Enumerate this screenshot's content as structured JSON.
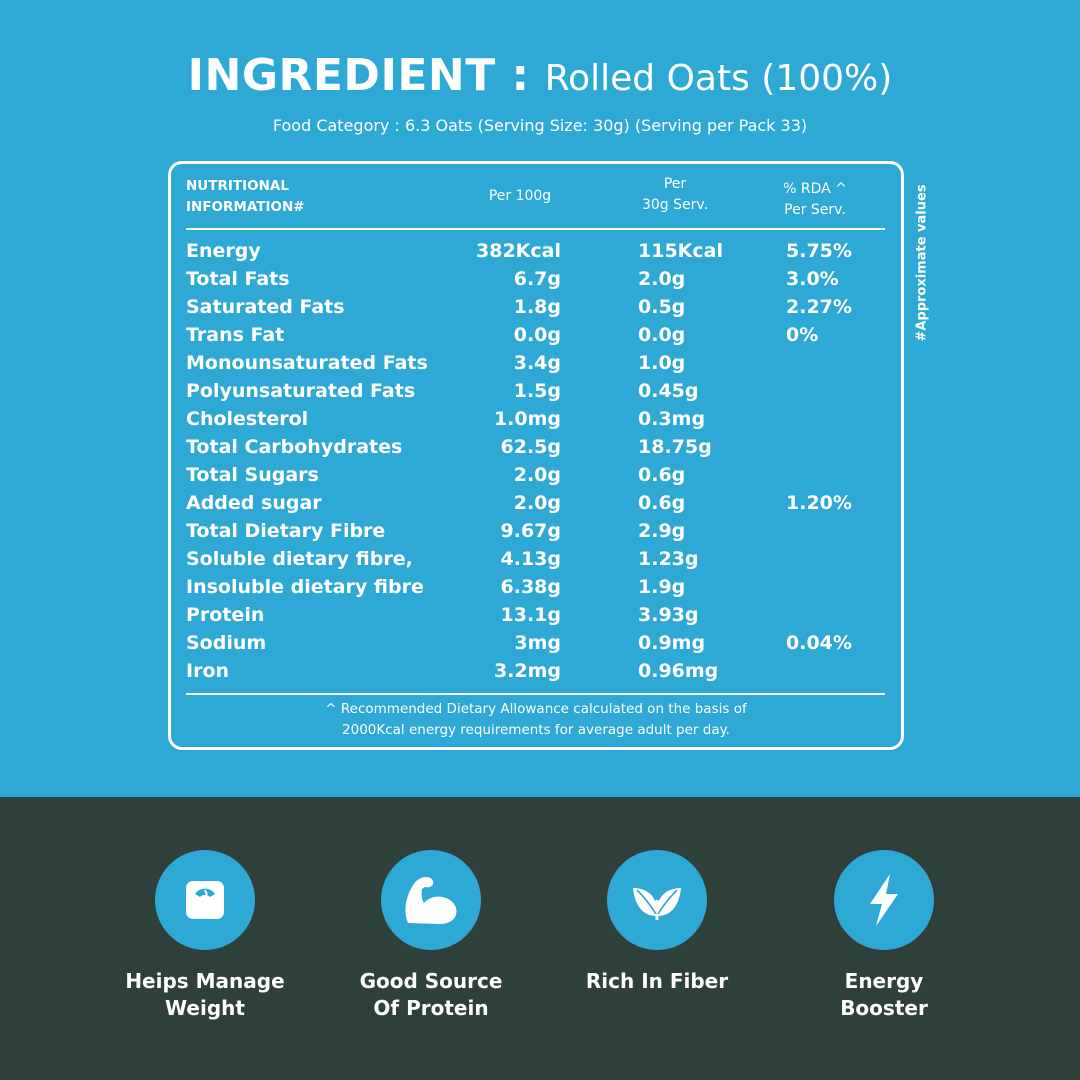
{
  "header": {
    "title_bold": "INGREDIENT :",
    "title_rest": "Rolled Oats (100%)",
    "subtitle": "Food Category : 6.3 Oats (Serving Size: 30g) (Serving per Pack 33)"
  },
  "table": {
    "headers": {
      "col1_line1": "NUTRITIONAL",
      "col1_line2": "INFORMATION#",
      "col2": "Per 100g",
      "col3_line1": "Per",
      "col3_line2": "30g Serv.",
      "col4_line1": "% RDA ^",
      "col4_line2": "Per Serv."
    },
    "rows": [
      {
        "name": "Energy",
        "per100": "382Kcal",
        "per30": "115Kcal",
        "rda": "5.75%"
      },
      {
        "name": "Total Fats",
        "per100": "6.7g",
        "per30": "2.0g",
        "rda": "3.0%"
      },
      {
        "name": "Saturated Fats",
        "per100": "1.8g",
        "per30": "0.5g",
        "rda": "2.27%"
      },
      {
        "name": "Trans Fat",
        "per100": "0.0g",
        "per30": "0.0g",
        "rda": "0%"
      },
      {
        "name": "Monounsaturated Fats",
        "per100": "3.4g",
        "per30": "1.0g",
        "rda": ""
      },
      {
        "name": "Polyunsaturated Fats",
        "per100": "1.5g",
        "per30": "0.45g",
        "rda": ""
      },
      {
        "name": "Cholesterol",
        "per100": "1.0mg",
        "per30": "0.3mg",
        "rda": ""
      },
      {
        "name": "Total Carbohydrates",
        "per100": "62.5g",
        "per30": "18.75g",
        "rda": ""
      },
      {
        "name": "Total Sugars",
        "per100": "2.0g",
        "per30": "0.6g",
        "rda": ""
      },
      {
        "name": "Added sugar",
        "per100": "2.0g",
        "per30": "0.6g",
        "rda": "1.20%"
      },
      {
        "name": "Total Dietary Fibre",
        "per100": "9.67g",
        "per30": "2.9g",
        "rda": ""
      },
      {
        "name": "Soluble dietary fibre,",
        "per100": "4.13g",
        "per30": "1.23g",
        "rda": ""
      },
      {
        "name": "Insoluble dietary fibre",
        "per100": "6.38g",
        "per30": "1.9g",
        "rda": ""
      },
      {
        "name": "Protein",
        "per100": "13.1g",
        "per30": "3.93g",
        "rda": ""
      },
      {
        "name": "Sodium",
        "per100": "3mg",
        "per30": "0.9mg",
        "rda": "0.04%"
      },
      {
        "name": "Iron",
        "per100": "3.2mg",
        "per30": "0.96mg",
        "rda": ""
      }
    ],
    "footnote_line1": "^ Recommended Dietary Allowance calculated on the basis of",
    "footnote_line2": "2000Kcal energy requirements for average adult per day.",
    "side_note": "#Approximate values"
  },
  "features": [
    {
      "icon": "weighing-scale-icon",
      "line1": "Heips Manage",
      "line2": "Weight"
    },
    {
      "icon": "flexed-bicep-icon",
      "line1": "Good Source",
      "line2": "Of Protein"
    },
    {
      "icon": "leaf-sprout-icon",
      "line1": "Rich In Fiber",
      "line2": ""
    },
    {
      "icon": "lightning-bolt-icon",
      "line1": "Energy",
      "line2": "Booster"
    }
  ],
  "colors": {
    "top_background": "#2ea9d6",
    "bottom_background": "#2f3f3a",
    "icon_circle": "#2ea9d6",
    "text": "#ffffff"
  }
}
